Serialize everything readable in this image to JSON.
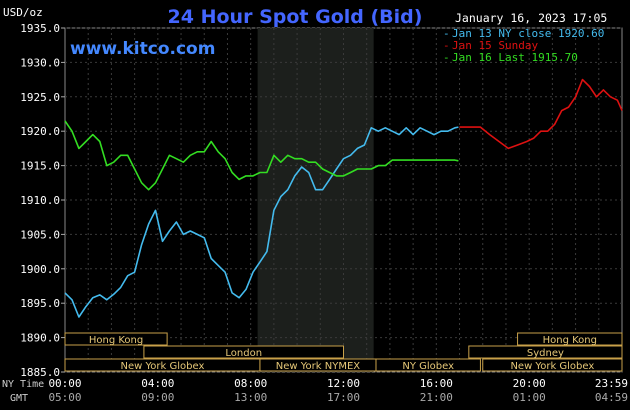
{
  "chart_data": {
    "type": "line",
    "title": "24 Hour Spot Gold (Bid)",
    "units_label": "USD/oz",
    "website": "www.kitco.com",
    "timestamp": "January 16, 2023 17:05",
    "ylim": [
      1885,
      1935
    ],
    "yticks": [
      "1935.0",
      "1930.0",
      "1925.0",
      "1920.0",
      "1915.0",
      "1910.0",
      "1905.0",
      "1900.0",
      "1895.0",
      "1890.0",
      "1885.0"
    ],
    "xlim": [
      0,
      24
    ],
    "x_axis_labels": {
      "row1": "NY Time",
      "row2": "GMT"
    },
    "xticks": [
      {
        "hour": 0,
        "ny": "00:00",
        "gmt": "05:00"
      },
      {
        "hour": 4,
        "ny": "04:00",
        "gmt": "09:00"
      },
      {
        "hour": 8,
        "ny": "08:00",
        "gmt": "13:00"
      },
      {
        "hour": 12,
        "ny": "12:00",
        "gmt": "17:00"
      },
      {
        "hour": 16,
        "ny": "16:00",
        "gmt": "21:00"
      },
      {
        "hour": 20,
        "ny": "20:00",
        "gmt": "01:00"
      },
      {
        "hour": 23.983,
        "ny": "23:59",
        "gmt": "04:59"
      }
    ],
    "highlight_range": [
      8.3,
      13.3
    ],
    "legend": [
      {
        "text": "Jan 13 NY close 1920.60",
        "color": "#44bbee"
      },
      {
        "text": "Jan 15 Sunday",
        "color": "#dd1111"
      },
      {
        "text": "Jan 16 Last 1915.70",
        "color": "#33dd22"
      }
    ],
    "sessions": [
      {
        "label": "Hong Kong",
        "start": 0,
        "end": 4.4,
        "row": 0
      },
      {
        "label": "London",
        "start": 3.4,
        "end": 12,
        "row": 1
      },
      {
        "label": "New York Globex",
        "start": 0,
        "end": 8.4,
        "row": 2
      },
      {
        "label": "New York NYMEX",
        "start": 8.4,
        "end": 13.4,
        "row": 2
      },
      {
        "label": "NY Globex",
        "start": 13.4,
        "end": 17.9,
        "row": 2
      },
      {
        "label": "Hong Kong",
        "start": 19.5,
        "end": 24,
        "row": 0
      },
      {
        "label": "Sydney",
        "start": 17.4,
        "end": 24,
        "row": 1
      },
      {
        "label": "New York Globex",
        "start": 18,
        "end": 24,
        "row": 2
      }
    ],
    "series": [
      {
        "name": "Jan 13",
        "color": "#44bbee",
        "x": [
          0,
          0.3,
          0.6,
          0.9,
          1.2,
          1.5,
          1.8,
          2.1,
          2.4,
          2.7,
          3.0,
          3.3,
          3.6,
          3.9,
          4.2,
          4.5,
          4.8,
          5.1,
          5.4,
          5.7,
          6.0,
          6.3,
          6.6,
          6.9,
          7.2,
          7.5,
          7.8,
          8.1,
          8.4,
          8.7,
          9.0,
          9.3,
          9.6,
          9.9,
          10.2,
          10.5,
          10.8,
          11.1,
          11.4,
          11.7,
          12.0,
          12.3,
          12.6,
          12.9,
          13.2,
          13.5,
          13.8,
          14.1,
          14.4,
          14.7,
          15.0,
          15.3,
          15.6,
          15.9,
          16.2,
          16.5,
          16.8,
          16.95
        ],
        "y": [
          1896.5,
          1895.5,
          1893.0,
          1894.5,
          1895.8,
          1896.2,
          1895.5,
          1896.3,
          1897.3,
          1899.0,
          1899.5,
          1903.5,
          1906.5,
          1908.5,
          1904.0,
          1905.5,
          1906.8,
          1905.0,
          1905.5,
          1905.0,
          1904.5,
          1901.5,
          1900.5,
          1899.5,
          1896.5,
          1895.8,
          1897.0,
          1899.5,
          1901.0,
          1902.5,
          1908.5,
          1910.5,
          1911.5,
          1913.5,
          1914.8,
          1914.0,
          1911.5,
          1911.5,
          1913.0,
          1914.5,
          1916.0,
          1916.5,
          1917.5,
          1918.0,
          1920.5,
          1920.0,
          1920.5,
          1920.0,
          1919.5,
          1920.5,
          1919.5,
          1920.5,
          1920.0,
          1919.5,
          1920.0,
          1920.0,
          1920.5,
          1920.6
        ]
      },
      {
        "name": "Jan 15 Sunday",
        "color": "#dd1111",
        "x": [
          17.0,
          17.4,
          17.9,
          18.3,
          18.7,
          19.1,
          19.5,
          19.9,
          20.2,
          20.5,
          20.8,
          21.1,
          21.4,
          21.7,
          22.0,
          22.3,
          22.6,
          22.9,
          23.2,
          23.5,
          23.8,
          24.0
        ],
        "y": [
          1920.6,
          1920.6,
          1920.6,
          1919.5,
          1918.5,
          1917.5,
          1918.0,
          1918.5,
          1919.0,
          1920.0,
          1920.0,
          1921.0,
          1923.0,
          1923.5,
          1925.0,
          1927.5,
          1926.5,
          1925.0,
          1926.0,
          1925.0,
          1924.5,
          1923.0
        ]
      },
      {
        "name": "Jan 16",
        "color": "#33dd22",
        "x": [
          0,
          0.3,
          0.6,
          0.9,
          1.2,
          1.5,
          1.8,
          2.1,
          2.4,
          2.7,
          3.0,
          3.3,
          3.6,
          3.9,
          4.2,
          4.5,
          4.8,
          5.1,
          5.4,
          5.7,
          6.0,
          6.3,
          6.6,
          6.9,
          7.2,
          7.5,
          7.8,
          8.1,
          8.4,
          8.7,
          9.0,
          9.3,
          9.6,
          9.9,
          10.2,
          10.5,
          10.8,
          11.1,
          11.4,
          11.7,
          12.0,
          12.3,
          12.6,
          12.9,
          13.2,
          13.5,
          13.8,
          14.1,
          14.4,
          14.7,
          15.0,
          15.3,
          15.6,
          15.9,
          16.2,
          16.5,
          16.8,
          16.95
        ],
        "y": [
          1921.5,
          1920.0,
          1917.5,
          1918.5,
          1919.5,
          1918.5,
          1915.0,
          1915.5,
          1916.5,
          1916.5,
          1914.5,
          1912.5,
          1911.5,
          1912.5,
          1914.5,
          1916.5,
          1916.0,
          1915.5,
          1916.5,
          1917.0,
          1917.0,
          1918.5,
          1917.0,
          1916.0,
          1914.0,
          1913.0,
          1913.5,
          1913.5,
          1914.0,
          1914.0,
          1916.5,
          1915.5,
          1916.5,
          1916.0,
          1916.0,
          1915.5,
          1915.5,
          1914.5,
          1914.0,
          1913.5,
          1913.5,
          1914.0,
          1914.5,
          1914.5,
          1914.5,
          1915.0,
          1915.0,
          1915.8,
          1915.8,
          1915.8,
          1915.8,
          1915.8,
          1915.8,
          1915.8,
          1915.8,
          1915.8,
          1915.8,
          1915.7
        ]
      }
    ]
  }
}
